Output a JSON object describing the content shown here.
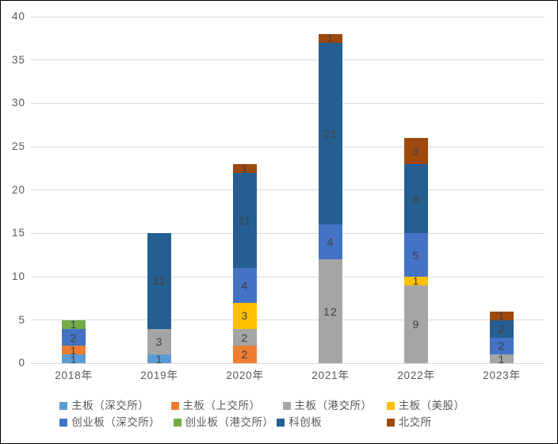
{
  "chart_data": {
    "type": "bar",
    "stacked": true,
    "categories": [
      "2018年",
      "2019年",
      "2020年",
      "2021年",
      "2022年",
      "2023年"
    ],
    "series": [
      {
        "name": "主板（深交所）",
        "color": "#5B9BD5",
        "values": [
          1,
          1,
          0,
          0,
          0,
          0
        ]
      },
      {
        "name": "主板（上交所）",
        "color": "#ED7D31",
        "values": [
          1,
          0,
          2,
          0,
          0,
          0
        ]
      },
      {
        "name": "主板（港交所）",
        "color": "#A5A5A5",
        "values": [
          0,
          3,
          2,
          12,
          9,
          1
        ]
      },
      {
        "name": "主板（美股）",
        "color": "#FFC000",
        "values": [
          0,
          0,
          3,
          0,
          1,
          0
        ]
      },
      {
        "name": "创业板（深交所）",
        "color": "#4472C4",
        "values": [
          2,
          0,
          4,
          4,
          5,
          2
        ]
      },
      {
        "name": "创业板（港交所）",
        "color": "#70AD47",
        "values": [
          1,
          0,
          0,
          0,
          0,
          0
        ]
      },
      {
        "name": "科创板",
        "color": "#255E91",
        "values": [
          0,
          11,
          11,
          21,
          8,
          2
        ]
      },
      {
        "name": "北交所",
        "color": "#9E480E",
        "values": [
          0,
          0,
          1,
          1,
          3,
          1
        ]
      }
    ],
    "ylim": [
      0,
      40
    ],
    "yticks": [
      0,
      5,
      10,
      15,
      20,
      25,
      30,
      35,
      40
    ],
    "grid": true,
    "data_labels": true,
    "legend_position": "bottom"
  },
  "colors": {
    "grid": "#D9D9D9",
    "axis_text": "#595959",
    "label_text": "#404040",
    "border": "#000000",
    "background": "#FFFFFF"
  }
}
